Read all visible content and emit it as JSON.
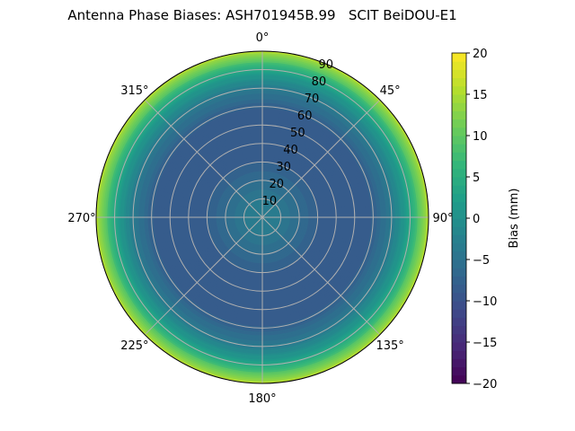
{
  "chart_data": {
    "type": "polar-contour",
    "title": "Antenna Phase Biases: ASH701945B.99   SCIT BeiDOU-E1",
    "angle_ticks": [
      "0°",
      "45°",
      "90°",
      "135°",
      "180°",
      "225°",
      "270°",
      "315°"
    ],
    "radial_ticks": [
      "10",
      "20",
      "30",
      "40",
      "50",
      "60",
      "70",
      "80",
      "90"
    ],
    "radial_range": [
      0,
      90
    ],
    "grid": true,
    "colormap": "viridis",
    "colorbar": {
      "label": "Bias (mm)",
      "range": [
        -20,
        20
      ],
      "ticks": [
        "20",
        "15",
        "10",
        "5",
        "0",
        "−5",
        "−10",
        "−15",
        "−20"
      ]
    },
    "radial_profile": {
      "zenith_deg": [
        0,
        10,
        20,
        30,
        40,
        50,
        60,
        70,
        80,
        90
      ],
      "bias_mm": [
        -3,
        -4,
        -6,
        -8,
        -9,
        -9,
        -8,
        -4,
        3,
        15
      ]
    }
  }
}
